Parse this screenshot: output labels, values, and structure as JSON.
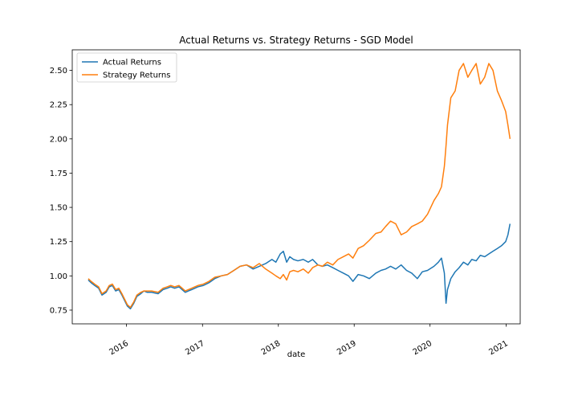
{
  "chart_data": {
    "type": "line",
    "title": "Actual Returns vs. Strategy Returns - SGD Model",
    "xlabel": "date",
    "ylabel": "",
    "xlim": [
      "2015-04-15",
      "2021-03-10"
    ],
    "ylim": [
      0.65,
      2.65
    ],
    "xticks": [
      "2016",
      "2017",
      "2018",
      "2019",
      "2020",
      "2021"
    ],
    "yticks": [
      "0.75",
      "1.00",
      "1.25",
      "1.50",
      "1.75",
      "2.00",
      "2.25",
      "2.50"
    ],
    "legend_position": "top-left",
    "grid": false,
    "series": [
      {
        "name": "Actual Returns",
        "color": "#1f77b4",
        "x": [
          "2015-07-01",
          "2015-07-15",
          "2015-08-01",
          "2015-08-20",
          "2015-09-05",
          "2015-09-25",
          "2015-10-10",
          "2015-10-25",
          "2015-11-10",
          "2015-11-25",
          "2015-12-10",
          "2016-01-05",
          "2016-01-20",
          "2016-02-05",
          "2016-02-20",
          "2016-03-10",
          "2016-03-25",
          "2016-04-10",
          "2016-05-01",
          "2016-06-01",
          "2016-06-25",
          "2016-07-15",
          "2016-08-01",
          "2016-08-20",
          "2016-09-10",
          "2016-09-25",
          "2016-10-10",
          "2016-10-25",
          "2016-11-10",
          "2016-11-25",
          "2016-12-10",
          "2017-01-05",
          "2017-02-01",
          "2017-03-01",
          "2017-04-01",
          "2017-05-01",
          "2017-06-01",
          "2017-07-01",
          "2017-08-01",
          "2017-09-01",
          "2017-10-01",
          "2017-11-01",
          "2017-12-01",
          "2017-12-20",
          "2018-01-10",
          "2018-01-25",
          "2018-02-10",
          "2018-02-25",
          "2018-03-15",
          "2018-04-05",
          "2018-05-01",
          "2018-05-25",
          "2018-06-15",
          "2018-07-10",
          "2018-08-01",
          "2018-08-25",
          "2018-09-20",
          "2018-10-15",
          "2018-11-10",
          "2018-12-05",
          "2018-12-26",
          "2019-01-20",
          "2019-02-15",
          "2019-03-15",
          "2019-04-15",
          "2019-05-10",
          "2019-06-01",
          "2019-06-25",
          "2019-07-20",
          "2019-08-15",
          "2019-09-10",
          "2019-10-05",
          "2019-11-01",
          "2019-11-25",
          "2019-12-20",
          "2020-01-20",
          "2020-02-10",
          "2020-02-25",
          "2020-03-10",
          "2020-03-18",
          "2020-03-25",
          "2020-04-10",
          "2020-05-01",
          "2020-05-20",
          "2020-06-10",
          "2020-07-01",
          "2020-07-20",
          "2020-08-10",
          "2020-08-30",
          "2020-09-20",
          "2020-10-10",
          "2020-10-30",
          "2020-11-20",
          "2020-12-10",
          "2020-12-30",
          "2021-01-10",
          "2021-01-20"
        ],
        "values": [
          0.97,
          0.95,
          0.93,
          0.91,
          0.86,
          0.88,
          0.92,
          0.93,
          0.89,
          0.9,
          0.86,
          0.78,
          0.76,
          0.8,
          0.85,
          0.87,
          0.89,
          0.88,
          0.88,
          0.87,
          0.9,
          0.91,
          0.92,
          0.91,
          0.92,
          0.9,
          0.88,
          0.89,
          0.9,
          0.91,
          0.92,
          0.93,
          0.95,
          0.98,
          1.0,
          1.01,
          1.04,
          1.07,
          1.08,
          1.05,
          1.07,
          1.09,
          1.12,
          1.1,
          1.16,
          1.18,
          1.1,
          1.14,
          1.12,
          1.11,
          1.12,
          1.1,
          1.12,
          1.08,
          1.07,
          1.08,
          1.06,
          1.04,
          1.02,
          1.0,
          0.96,
          1.01,
          1.0,
          0.98,
          1.02,
          1.04,
          1.05,
          1.07,
          1.05,
          1.08,
          1.04,
          1.02,
          0.98,
          1.03,
          1.04,
          1.07,
          1.1,
          1.13,
          1.02,
          0.8,
          0.9,
          0.98,
          1.03,
          1.06,
          1.1,
          1.08,
          1.12,
          1.11,
          1.15,
          1.14,
          1.16,
          1.18,
          1.2,
          1.22,
          1.25,
          1.3,
          1.38
        ]
      },
      {
        "name": "Strategy Returns",
        "color": "#ff7f0e",
        "x": [
          "2015-07-01",
          "2015-07-15",
          "2015-08-01",
          "2015-08-20",
          "2015-09-05",
          "2015-09-25",
          "2015-10-10",
          "2015-10-25",
          "2015-11-10",
          "2015-11-25",
          "2015-12-10",
          "2016-01-05",
          "2016-01-20",
          "2016-02-05",
          "2016-02-20",
          "2016-03-10",
          "2016-03-25",
          "2016-04-10",
          "2016-05-01",
          "2016-06-01",
          "2016-06-25",
          "2016-07-15",
          "2016-08-01",
          "2016-08-20",
          "2016-09-10",
          "2016-09-25",
          "2016-10-10",
          "2016-10-25",
          "2016-11-10",
          "2016-11-25",
          "2016-12-10",
          "2017-01-05",
          "2017-02-01",
          "2017-03-01",
          "2017-04-01",
          "2017-05-01",
          "2017-06-01",
          "2017-07-01",
          "2017-08-01",
          "2017-09-01",
          "2017-10-01",
          "2017-11-01",
          "2017-12-01",
          "2017-12-20",
          "2018-01-10",
          "2018-01-25",
          "2018-02-10",
          "2018-02-25",
          "2018-03-15",
          "2018-04-05",
          "2018-05-01",
          "2018-05-25",
          "2018-06-15",
          "2018-07-10",
          "2018-08-01",
          "2018-08-25",
          "2018-09-20",
          "2018-10-15",
          "2018-11-10",
          "2018-12-05",
          "2018-12-26",
          "2019-01-20",
          "2019-02-15",
          "2019-03-15",
          "2019-04-15",
          "2019-05-10",
          "2019-06-01",
          "2019-06-25",
          "2019-07-20",
          "2019-08-15",
          "2019-09-10",
          "2019-10-05",
          "2019-11-01",
          "2019-11-25",
          "2019-12-20",
          "2020-01-20",
          "2020-02-10",
          "2020-02-25",
          "2020-03-10",
          "2020-03-18",
          "2020-03-25",
          "2020-04-10",
          "2020-05-01",
          "2020-05-20",
          "2020-06-10",
          "2020-07-01",
          "2020-07-20",
          "2020-08-10",
          "2020-08-30",
          "2020-09-20",
          "2020-10-10",
          "2020-10-30",
          "2020-11-20",
          "2020-12-10",
          "2020-12-30",
          "2021-01-10",
          "2021-01-20"
        ],
        "values": [
          0.98,
          0.96,
          0.94,
          0.92,
          0.87,
          0.89,
          0.93,
          0.94,
          0.9,
          0.91,
          0.87,
          0.79,
          0.77,
          0.81,
          0.86,
          0.88,
          0.89,
          0.89,
          0.89,
          0.88,
          0.91,
          0.92,
          0.93,
          0.92,
          0.93,
          0.91,
          0.89,
          0.9,
          0.91,
          0.92,
          0.93,
          0.94,
          0.96,
          0.99,
          1.0,
          1.01,
          1.04,
          1.07,
          1.08,
          1.06,
          1.09,
          1.05,
          1.02,
          1.0,
          0.98,
          1.01,
          0.97,
          1.03,
          1.04,
          1.03,
          1.05,
          1.02,
          1.06,
          1.08,
          1.07,
          1.1,
          1.08,
          1.12,
          1.14,
          1.16,
          1.13,
          1.2,
          1.22,
          1.26,
          1.31,
          1.32,
          1.36,
          1.4,
          1.38,
          1.3,
          1.32,
          1.36,
          1.38,
          1.4,
          1.45,
          1.55,
          1.6,
          1.65,
          1.8,
          1.95,
          2.1,
          2.3,
          2.35,
          2.5,
          2.55,
          2.45,
          2.5,
          2.55,
          2.4,
          2.45,
          2.55,
          2.5,
          2.35,
          2.28,
          2.2,
          2.1,
          2.0
        ]
      }
    ]
  }
}
